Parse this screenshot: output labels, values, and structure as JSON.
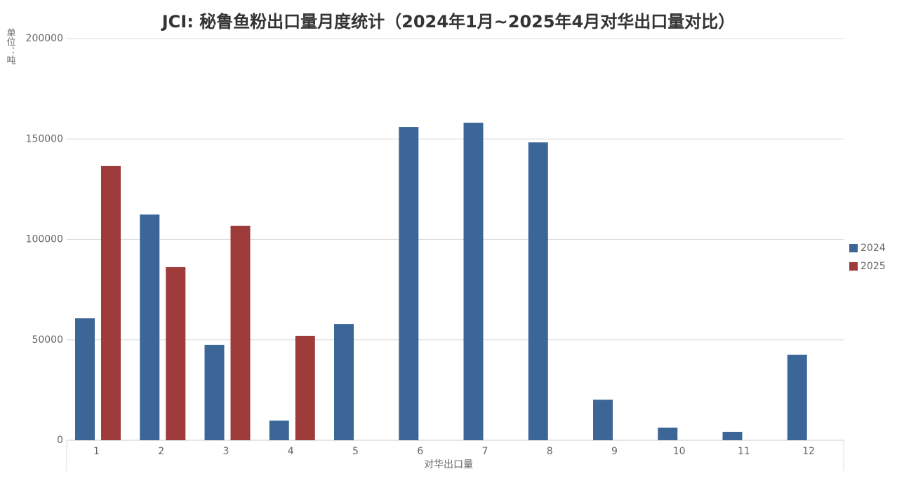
{
  "chart_data": {
    "type": "bar",
    "title": "JCI: 秘鲁鱼粉出口量月度统计（2024年1月~2025年4月对华出口量对比）",
    "y_label": "单位：吨",
    "x_label": "对华出口量",
    "categories": [
      "1",
      "2",
      "3",
      "4",
      "5",
      "6",
      "7",
      "8",
      "9",
      "10",
      "11",
      "12"
    ],
    "series": [
      {
        "name": "2024",
        "color": "#3d6698",
        "values": [
          60700,
          112400,
          47500,
          9800,
          57900,
          156000,
          158100,
          148300,
          20200,
          6300,
          4200,
          42600
        ]
      },
      {
        "name": "2025",
        "color": "#9e3c3b",
        "values": [
          136500,
          86200,
          106800,
          52000,
          null,
          null,
          null,
          null,
          null,
          null,
          null,
          null
        ]
      }
    ],
    "ylim": [
      0,
      200000
    ],
    "yticks": [
      0,
      50000,
      100000,
      150000,
      200000
    ],
    "grid": true,
    "legend": "right"
  }
}
